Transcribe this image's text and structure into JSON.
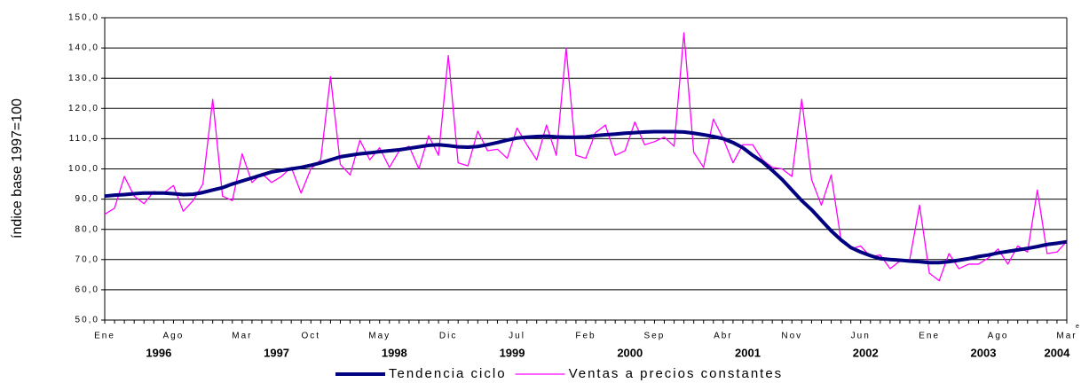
{
  "chart_data": {
    "type": "line",
    "y_label": "índice base 1997=100",
    "note": "e",
    "categories": [
      "Ene",
      null,
      null,
      null,
      null,
      null,
      null,
      "Ago",
      null,
      null,
      null,
      null,
      null,
      null,
      "Mar",
      null,
      null,
      null,
      null,
      null,
      null,
      "Oct",
      null,
      null,
      null,
      null,
      null,
      null,
      "May",
      null,
      null,
      null,
      null,
      null,
      null,
      "Dic",
      null,
      null,
      null,
      null,
      null,
      null,
      "Jul",
      null,
      null,
      null,
      null,
      null,
      null,
      "Feb",
      null,
      null,
      null,
      null,
      null,
      null,
      "Sep",
      null,
      null,
      null,
      null,
      null,
      null,
      "Abr",
      null,
      null,
      null,
      null,
      null,
      null,
      "Nov",
      null,
      null,
      null,
      null,
      null,
      null,
      "Jun",
      null,
      null,
      null,
      null,
      null,
      null,
      "Ene",
      null,
      null,
      null,
      null,
      null,
      null,
      "Ago",
      null,
      null,
      null,
      null,
      null,
      null,
      "Mar"
    ],
    "years": [
      "1996",
      "1997",
      "1998",
      "1999",
      "2000",
      "2001",
      "2002",
      "2003",
      "2004"
    ],
    "ylim": [
      50,
      150
    ],
    "yticks": [
      {
        "value": 50,
        "label": "50,0"
      },
      {
        "value": 60,
        "label": "60,0"
      },
      {
        "value": 70,
        "label": "70,0"
      },
      {
        "value": 80,
        "label": "80,0"
      },
      {
        "value": 90,
        "label": "90,0"
      },
      {
        "value": 100,
        "label": "100,0"
      },
      {
        "value": 110,
        "label": "110,0"
      },
      {
        "value": 120,
        "label": "120,0"
      },
      {
        "value": 130,
        "label": "130,0"
      },
      {
        "value": 140,
        "label": "140,0"
      },
      {
        "value": 150,
        "label": "150,0"
      }
    ],
    "grid": true,
    "series": [
      {
        "name": "Tendencia ciclo",
        "color": "#000080",
        "width": 4,
        "values": [
          91,
          91.3,
          91.5,
          91.8,
          92,
          92,
          92,
          91.8,
          91.5,
          91.6,
          92.2,
          93,
          93.8,
          95,
          96,
          97,
          98,
          99,
          99.5,
          100,
          100.5,
          101.2,
          102,
          103,
          104,
          104.5,
          105,
          105.3,
          105.7,
          106,
          106.3,
          106.8,
          107.3,
          107.8,
          108,
          107.7,
          107.3,
          107.2,
          107.4,
          108,
          108.7,
          109.5,
          110.2,
          110.5,
          110.7,
          110.8,
          110.6,
          110.5,
          110.5,
          110.6,
          111,
          111.3,
          111.5,
          111.8,
          112,
          112.2,
          112.3,
          112.3,
          112.3,
          112.2,
          111.8,
          111.3,
          110.7,
          110,
          108.7,
          107,
          104.5,
          102.3,
          99.5,
          96.5,
          93,
          89.5,
          86.5,
          83,
          79.5,
          76.5,
          74,
          72.5,
          71.3,
          70.3,
          70,
          69.8,
          69.5,
          69.3,
          69,
          69,
          69.3,
          69.8,
          70.3,
          71,
          71.5,
          72.2,
          72.7,
          73.2,
          73.7,
          74.3,
          75,
          75.4,
          75.9
        ]
      },
      {
        "name": "Ventas a precios constantes",
        "color": "#ff00ff",
        "width": 1.3,
        "values": [
          85,
          87,
          97.5,
          91,
          88.5,
          92.5,
          92,
          94.5,
          86,
          89.5,
          95,
          123,
          91,
          89.5,
          105,
          95.5,
          98.5,
          95.5,
          97.5,
          100.5,
          92,
          100,
          103,
          130.5,
          101.5,
          98,
          109.5,
          103,
          107,
          100.5,
          106,
          107.5,
          100,
          111,
          104.5,
          137.5,
          102,
          101,
          112.5,
          106,
          106.5,
          103.5,
          113.5,
          108,
          103,
          114.5,
          104.5,
          140,
          104.5,
          103.5,
          112,
          114.5,
          104.5,
          106,
          115.5,
          108,
          109,
          110.5,
          107.5,
          145,
          105.5,
          100.5,
          116.5,
          110,
          102,
          108,
          108,
          103,
          100.5,
          100,
          97.5,
          123,
          96.5,
          88,
          98,
          76.5,
          73.5,
          74.5,
          71,
          71.5,
          67,
          69.5,
          70,
          88,
          65.5,
          63,
          72,
          67,
          68.5,
          68.5,
          70.5,
          73.5,
          68.5,
          74.5,
          72.5,
          93,
          72,
          72.5,
          76
        ]
      }
    ]
  }
}
